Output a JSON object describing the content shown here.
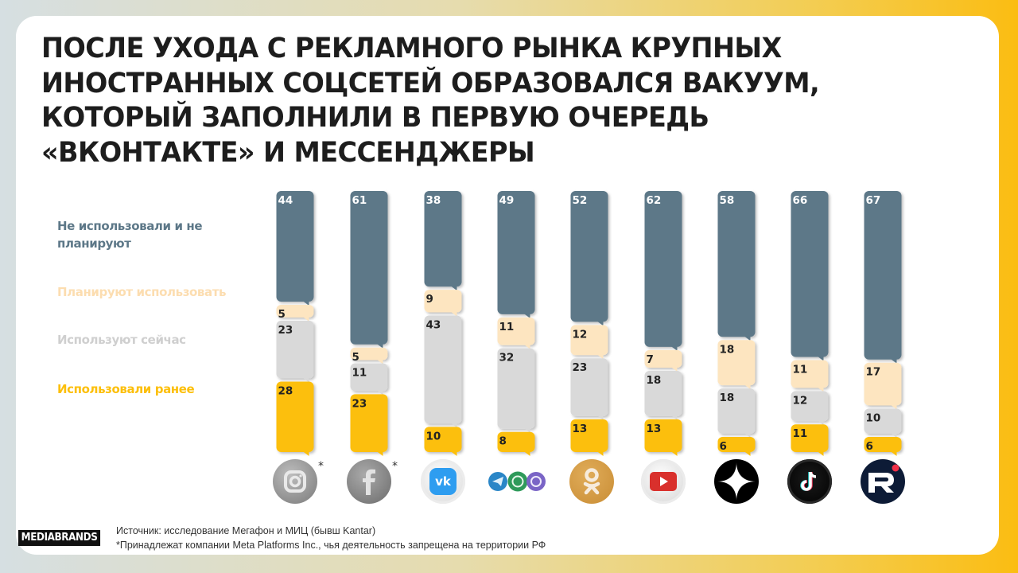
{
  "title_lines": [
    "ПОСЛЕ УХОДА С РЕКЛАМНОГО РЫНКА КРУПНЫХ",
    "ИНОСТРАННЫХ СОЦСЕТЕЙ ОБРАЗОВАЛСЯ ВАКУУМ,",
    "КОТОРЫЙ ЗАПОЛНИЛИ В ПЕРВУЮ ОЧЕРЕДЬ",
    "«ВКОНТАКТЕ» И МЕССЕНДЖЕРЫ"
  ],
  "legend": [
    {
      "label_line1": "Не использовали и не",
      "label_line2": "планируют",
      "color": "#5d7888"
    },
    {
      "label_line1": "Планируют использовать",
      "color": "#fde5c0"
    },
    {
      "label_line1": "Используют сейчас",
      "color": "#d9d9d9"
    },
    {
      "label_line1": "Использовали ранее",
      "color": "#fcbf0a"
    }
  ],
  "chart_data": {
    "type": "bar",
    "stacked": true,
    "title": "ПОСЛЕ УХОДА С РЕКЛАМНОГО РЫНКА КРУПНЫХ ИНОСТРАННЫХ СОЦСЕТЕЙ ОБРАЗОВАЛСЯ ВАКУУМ, КОТОРЫЙ ЗАПОЛНИЛИ В ПЕРВУЮ ОЧЕРЕДЬ «ВКОНТАКТЕ» И МЕССЕНДЖЕРЫ",
    "categories": [
      "instagram",
      "facebook",
      "vk",
      "messengers",
      "odnoklassniki",
      "youtube",
      "dzen",
      "tiktok",
      "rutube"
    ],
    "series": [
      {
        "name": "Не использовали и не планируют",
        "color": "#5d7888",
        "label_color": "#ffffff",
        "values": [
          44,
          61,
          38,
          49,
          52,
          62,
          58,
          66,
          67
        ]
      },
      {
        "name": "Планируют использовать",
        "color": "#fde5c0",
        "label_color": "#222222",
        "values": [
          5,
          5,
          9,
          11,
          12,
          7,
          18,
          11,
          17
        ]
      },
      {
        "name": "Используют сейчас",
        "color": "#d9d9d9",
        "label_color": "#222222",
        "values": [
          23,
          11,
          43,
          32,
          23,
          18,
          18,
          12,
          10
        ]
      },
      {
        "name": "Использовали ранее",
        "color": "#fcbf0a",
        "label_color": "#222222",
        "values": [
          28,
          23,
          10,
          8,
          13,
          13,
          6,
          11,
          6
        ]
      }
    ],
    "ylim": [
      0,
      100
    ],
    "grid": false,
    "legend_position": "left"
  },
  "icons": [
    {
      "name": "instagram-icon",
      "asterisk": "*"
    },
    {
      "name": "facebook-icon",
      "asterisk": "*"
    },
    {
      "name": "vk-icon"
    },
    {
      "name": "messengers-icon"
    },
    {
      "name": "odnoklassniki-icon"
    },
    {
      "name": "youtube-icon"
    },
    {
      "name": "dzen-icon"
    },
    {
      "name": "tiktok-icon"
    },
    {
      "name": "rutube-icon"
    }
  ],
  "footer": {
    "logo": "MEDIABRANDS",
    "source": "Источник: исследование Мегафон  и МИЦ (бывш Kantar)",
    "note": "*Принадлежат компании Meta Platforms Inc., чья деятельность запрещена на территории РФ"
  }
}
